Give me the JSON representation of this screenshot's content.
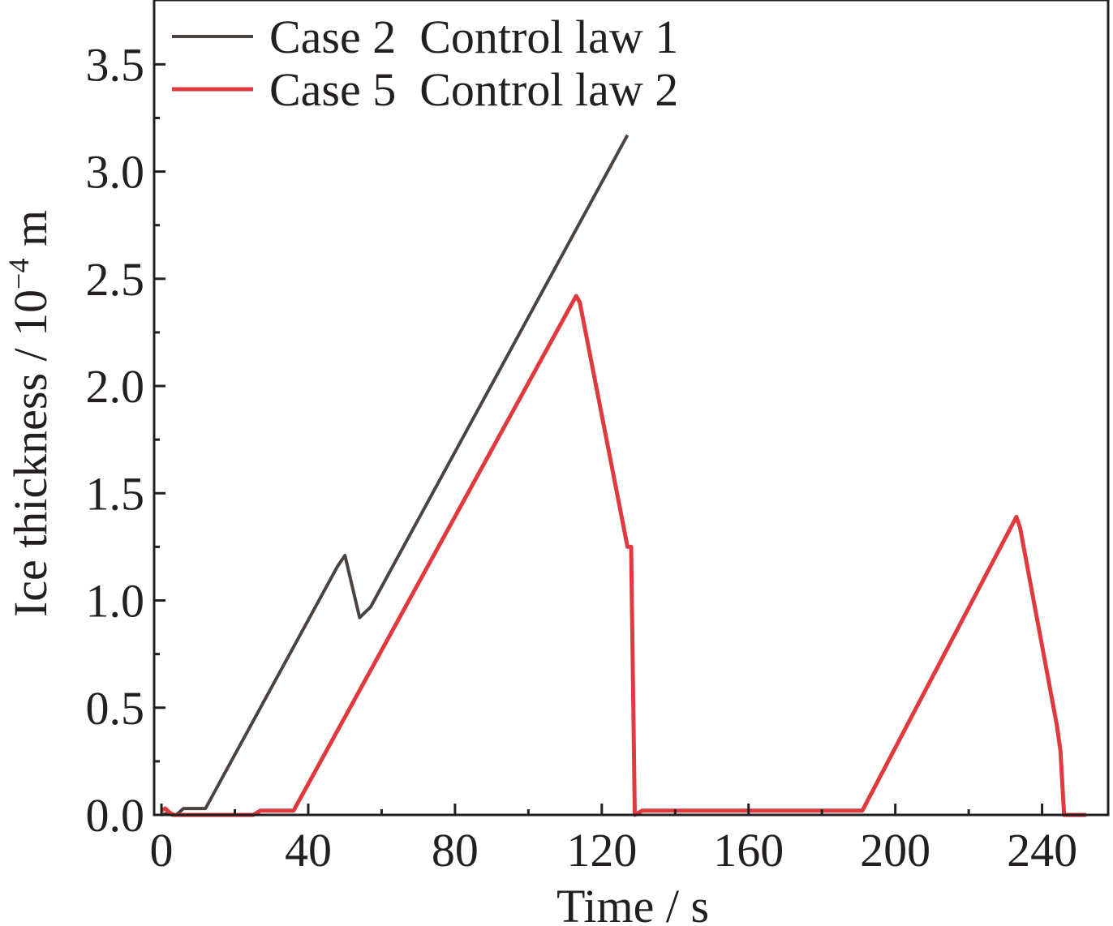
{
  "chart_data": {
    "type": "line",
    "xlabel": "Time / s",
    "ylabel": {
      "prefix": "Ice thickness / 10",
      "exponent": "−4",
      "suffix": " m"
    },
    "xlim": [
      -2,
      258
    ],
    "ylim": [
      0,
      3.8
    ],
    "xticks": [
      0,
      40,
      80,
      120,
      160,
      200,
      240
    ],
    "xtick_labels": [
      "0",
      "40",
      "80",
      "120",
      "160",
      "200",
      "240"
    ],
    "yticks": [
      0,
      0.5,
      1.0,
      1.5,
      2.0,
      2.5,
      3.0,
      3.5
    ],
    "ytick_labels": [
      "0.0",
      "0.5",
      "1.0",
      "1.5",
      "2.0",
      "2.5",
      "3.0",
      "3.5"
    ],
    "grid": false,
    "legend_position": "top-left",
    "series": [
      {
        "name": "Case 2  Control law 1",
        "color": "#4a4340",
        "x": [
          0,
          2,
          4,
          6,
          12,
          48,
          50,
          54,
          57,
          127
        ],
        "y": [
          0,
          0.01,
          0,
          0.03,
          0.03,
          1.16,
          1.21,
          0.92,
          0.97,
          3.17
        ]
      },
      {
        "name": "Case 5  Control law 2",
        "color": "#e03a3e",
        "x": [
          0,
          1,
          3,
          25,
          27,
          36,
          113,
          114,
          127,
          128,
          129,
          131,
          191,
          233,
          234,
          244,
          245,
          246,
          252
        ],
        "y": [
          0.02,
          0.03,
          0,
          0,
          0.02,
          0.02,
          2.42,
          2.39,
          1.25,
          1.25,
          0,
          0.02,
          0.02,
          1.39,
          1.34,
          0.42,
          0.3,
          0,
          0
        ]
      }
    ]
  }
}
